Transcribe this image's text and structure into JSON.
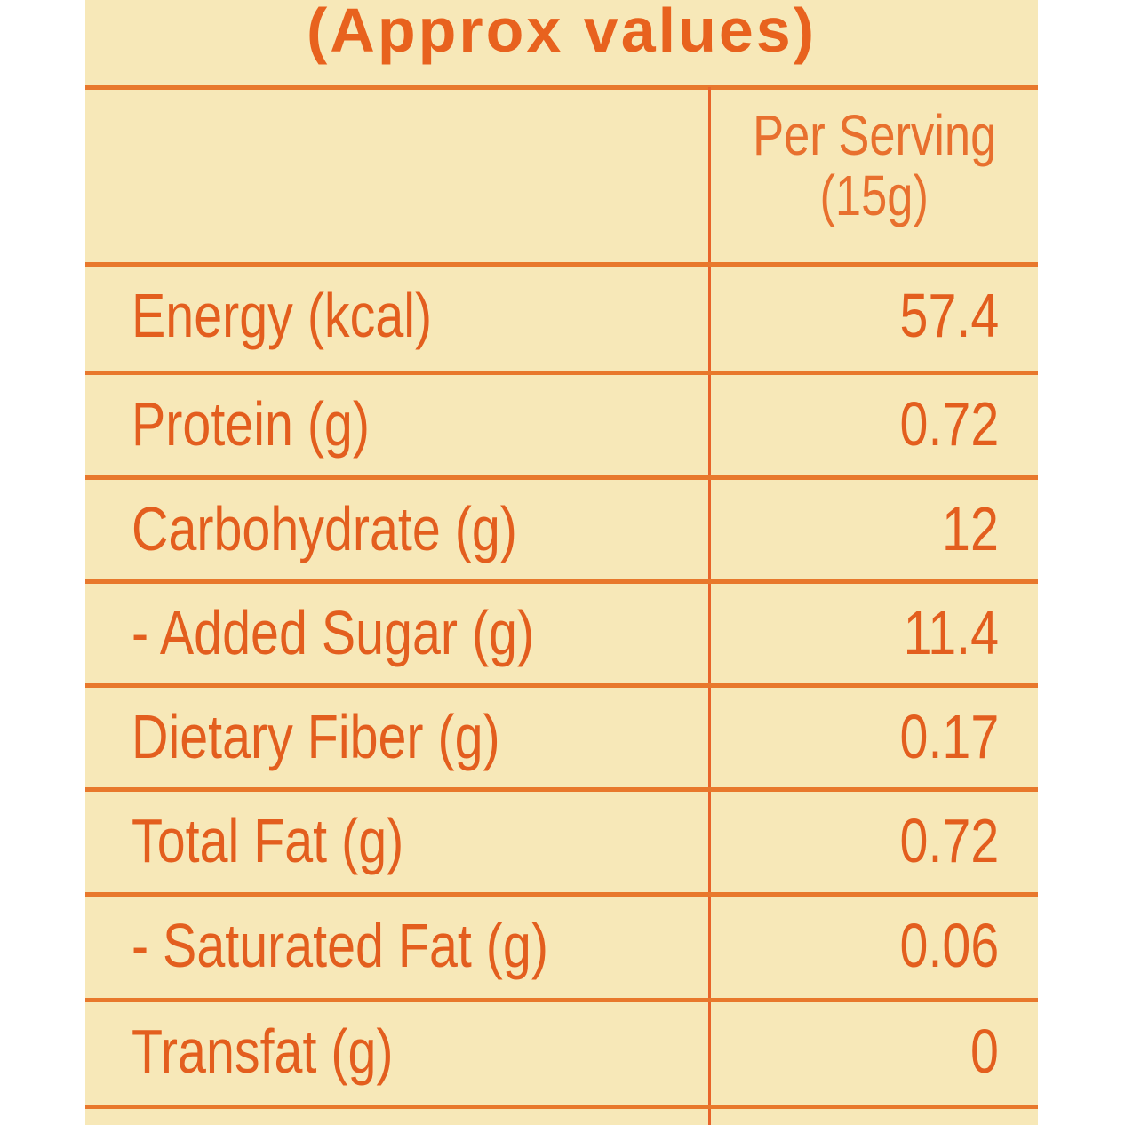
{
  "title": "(Approx values)",
  "header": {
    "line1": "Per Serving",
    "line2": "(15g)"
  },
  "rows": [
    {
      "label": "Energy (kcal)",
      "value": "57.4"
    },
    {
      "label": "Protein (g)",
      "value": "0.72"
    },
    {
      "label": "Carbohydrate (g)",
      "value": "12"
    },
    {
      "label": "- Added Sugar (g)",
      "value": "11.4"
    },
    {
      "label": "Dietary Fiber (g)",
      "value": "0.17"
    },
    {
      "label": "Total Fat (g)",
      "value": "0.72"
    },
    {
      "label": "- Saturated Fat (g)",
      "value": "0.06"
    },
    {
      "label": "Transfat (g)",
      "value": "0"
    }
  ],
  "colors": {
    "background": "#f7e8b8",
    "text": "#e35e1e",
    "lines": "#e8782c"
  }
}
